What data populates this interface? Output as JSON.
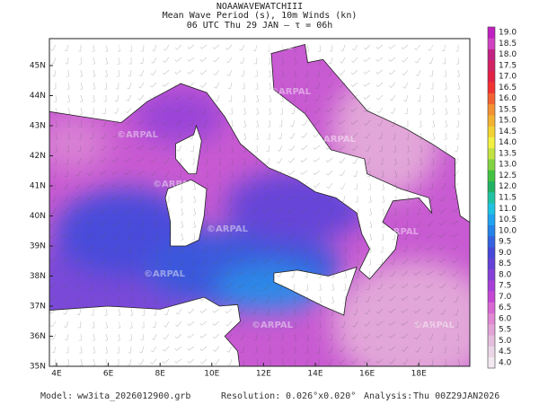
{
  "header": {
    "line1": "NOAAWAVEWATCHIII",
    "line2": "Mean Wave Period (s), 10m Winds (kn)",
    "line3": "06 UTC Thu 29 JAN  –  τ = 06h"
  },
  "watermark": "©ARPAL",
  "lat_ticks": [
    "35N",
    "36N",
    "37N",
    "38N",
    "39N",
    "40N",
    "41N",
    "42N",
    "43N",
    "44N",
    "45N"
  ],
  "lon_ticks": [
    "4E",
    "6E",
    "8E",
    "10E",
    "12E",
    "14E",
    "16E",
    "18E"
  ],
  "colorbar": [
    {
      "label": "4.0",
      "color": "#f2eaf0"
    },
    {
      "label": "4.5",
      "color": "#ead6e6"
    },
    {
      "label": "5.0",
      "color": "#e4bedc"
    },
    {
      "label": "5.5",
      "color": "#e2a4d6"
    },
    {
      "label": "6.0",
      "color": "#e088d2"
    },
    {
      "label": "6.5",
      "color": "#d868d2"
    },
    {
      "label": "7.0",
      "color": "#c448d4"
    },
    {
      "label": "7.5",
      "color": "#a640d8"
    },
    {
      "label": "8.0",
      "color": "#8640d8"
    },
    {
      "label": "8.5",
      "color": "#6442d8"
    },
    {
      "label": "9.0",
      "color": "#4648da"
    },
    {
      "label": "9.5",
      "color": "#3462e0"
    },
    {
      "label": "10.0",
      "color": "#2482e8"
    },
    {
      "label": "10.5",
      "color": "#20a2f0"
    },
    {
      "label": "11.0",
      "color": "#20c2e2"
    },
    {
      "label": "11.5",
      "color": "#20c2a4"
    },
    {
      "label": "12.0",
      "color": "#22b264"
    },
    {
      "label": "12.5",
      "color": "#42c242"
    },
    {
      "label": "13.0",
      "color": "#82d242"
    },
    {
      "label": "13.5",
      "color": "#c2e242"
    },
    {
      "label": "14.0",
      "color": "#f2f042"
    },
    {
      "label": "14.5",
      "color": "#f2d232"
    },
    {
      "label": "15.0",
      "color": "#f2b232"
    },
    {
      "label": "15.5",
      "color": "#f29232"
    },
    {
      "label": "16.0",
      "color": "#f26232"
    },
    {
      "label": "16.5",
      "color": "#f23232"
    },
    {
      "label": "17.0",
      "color": "#e22244"
    },
    {
      "label": "17.5",
      "color": "#d22264"
    },
    {
      "label": "18.0",
      "color": "#c22284"
    },
    {
      "label": "18.5",
      "color": "#d042c2"
    },
    {
      "label": "19.0",
      "color": "#c020c0"
    }
  ],
  "footer": {
    "model_label": "Model:",
    "model": "ww3ita_2026012900.grb",
    "resolution_label": "Resolution:",
    "resolution": "0.026°x0.020°",
    "analysis_label": "Analysis:",
    "analysis": "Thu 00Z29JAN2026"
  }
}
